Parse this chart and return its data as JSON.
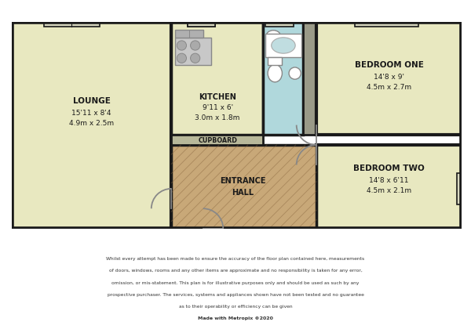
{
  "bg_color": "#ffffff",
  "lounge_color": "#e8e8c0",
  "bedroom_color": "#e8e8c0",
  "kitchen_color": "#e8e8c0",
  "bathroom_color": "#b0d8dc",
  "hall_color": "#c8a878",
  "cupboard_color": "#b8b89a",
  "gray_color": "#9a9a88",
  "wall_color": "#1a1a1a",
  "disclaimer_lines": [
    "Whilst every attempt has been made to ensure the accuracy of the floor plan contained here, measurements",
    "of doors, windows, rooms and any other items are approximate and no responsibility is taken for any error,",
    "omission, or mis-statement. This plan is for illustrative purposes only and should be used as such by any",
    "prospective purchaser. The services, systems and appliances shown have not been tested and no guarantee",
    "as to their operability or efficiency can be given",
    "Made with Metropix ©2020"
  ]
}
